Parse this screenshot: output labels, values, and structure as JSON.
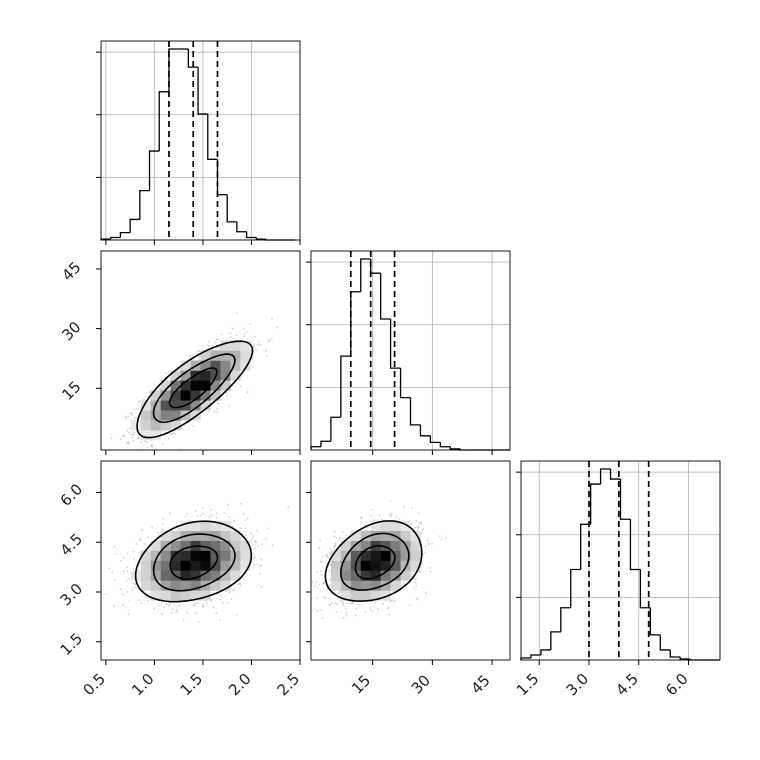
{
  "chart_data": {
    "type": "corner",
    "variables": [
      {
        "ticks": [
          0.5,
          1.0,
          1.5,
          2.0,
          2.5
        ],
        "tick_labels": [
          "0.5",
          "1.0",
          "1.5",
          "2.0",
          "2.5"
        ],
        "range": [
          0.45,
          2.5
        ]
      },
      {
        "ticks": [
          15,
          30,
          45
        ],
        "tick_labels": [
          "15",
          "30",
          "45"
        ],
        "range": [
          -0.5,
          49.5
        ]
      },
      {
        "ticks": [
          1.5,
          3.0,
          4.5,
          6.0
        ],
        "tick_labels": [
          "1.5",
          "3.0",
          "4.5",
          "6.0"
        ],
        "range": [
          0.95,
          6.95
        ]
      }
    ],
    "quantiles": [
      [
        1.15,
        1.4,
        1.65
      ],
      [
        9.5,
        14.5,
        20.5
      ],
      [
        3.0,
        3.9,
        4.8
      ]
    ],
    "histograms": [
      {
        "edges_start": 0.45,
        "bin_width": 0.1,
        "counts": [
          1,
          3,
          9,
          25,
          60,
          108,
          180,
          232,
          232,
          210,
          153,
          98,
          55,
          22,
          10,
          3,
          1,
          0,
          0,
          0
        ]
      },
      {
        "edges_start": -0.5,
        "bin_width": 2.5,
        "counts": [
          3,
          8,
          30,
          86,
          145,
          175,
          162,
          120,
          75,
          48,
          23,
          13,
          7,
          3,
          1,
          0,
          0,
          0,
          0,
          0
        ]
      },
      {
        "edges_start": 0.95,
        "bin_width": 0.3,
        "counts": [
          2,
          5,
          10,
          28,
          52,
          90,
          135,
          175,
          190,
          180,
          140,
          90,
          52,
          25,
          10,
          3,
          1,
          0,
          0,
          0
        ]
      }
    ],
    "joint": [
      {
        "x": 0,
        "y": 1,
        "center": [
          1.4,
          15
        ],
        "sd": [
          0.27,
          5.5
        ],
        "corr": 0.78,
        "contour_scales": [
          0.9,
          1.55,
          2.2
        ],
        "n_points": 1700
      },
      {
        "x": 0,
        "y": 2,
        "center": [
          1.4,
          3.9
        ],
        "sd": [
          0.27,
          0.55
        ],
        "corr": 0.25,
        "contour_scales": [
          0.9,
          1.55,
          2.2
        ],
        "n_points": 1700
      },
      {
        "x": 1,
        "y": 2,
        "center": [
          15.5,
          3.9
        ],
        "sd": [
          5.5,
          0.55
        ],
        "corr": 0.3,
        "contour_scales": [
          0.9,
          1.55,
          2.2
        ],
        "n_points": 1700
      }
    ],
    "grid": true,
    "colors": {
      "line": "#000000",
      "grid": "#b0b0b0",
      "points": "#7a7a7a"
    }
  }
}
